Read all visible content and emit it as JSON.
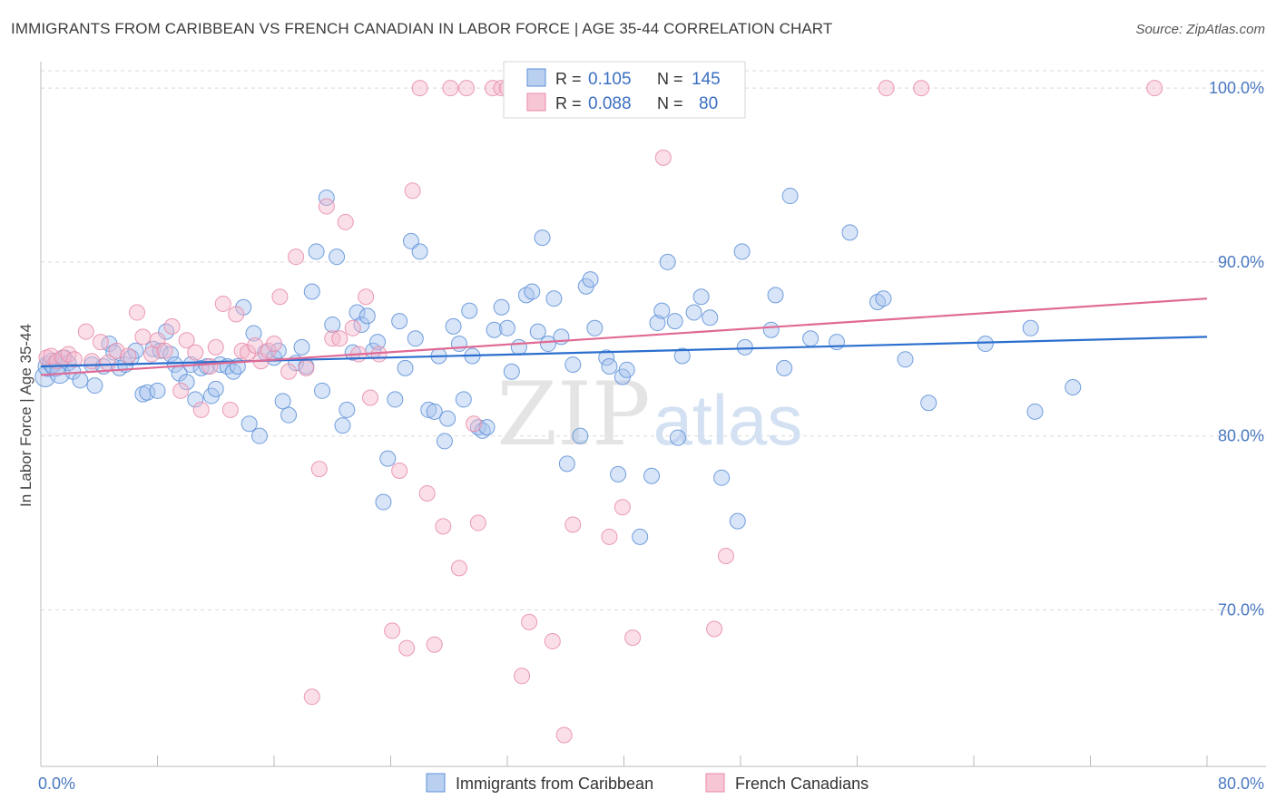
{
  "header": {
    "title": "IMMIGRANTS FROM CARIBBEAN VS FRENCH CANADIAN IN LABOR FORCE | AGE 35-44 CORRELATION CHART",
    "source": "Source: ZipAtlas.com"
  },
  "watermark": {
    "zip": "ZIP",
    "atlas": "atlas"
  },
  "legend_top": {
    "rows": [
      {
        "r_label": "R =",
        "r_value": "0.105",
        "n_label": "N =",
        "n_value": "145"
      },
      {
        "r_label": "R =",
        "r_value": "0.088",
        "n_label": "N =",
        "n_value": "80"
      }
    ]
  },
  "colors": {
    "blue_fill": "#a9c4ee",
    "blue_stroke": "#5b8fd8",
    "blue_line": "#2b6fce",
    "pink_fill": "#f5b8cb",
    "pink_stroke": "#e88aa8",
    "pink_line": "#e06a95",
    "grid": "#d9d9d9",
    "tick_text": "#4a78c2"
  },
  "chart_data": {
    "type": "scatter",
    "title": "IMMIGRANTS FROM CARIBBEAN VS FRENCH CANADIAN IN LABOR FORCE | AGE 35-44 CORRELATION CHART",
    "ylabel": "In Labor Force | Age 35-44",
    "xlabel": "",
    "xlim": [
      0,
      80
    ],
    "ylim": [
      61,
      101
    ],
    "x_ticks": [
      "0.0%",
      "80.0%"
    ],
    "y_ticks": [
      {
        "value": 100,
        "label": "100.0%"
      },
      {
        "value": 90,
        "label": "90.0%"
      },
      {
        "value": 80,
        "label": "80.0%"
      },
      {
        "value": 70,
        "label": "70.0%"
      }
    ],
    "grid": true,
    "legend_position": "bottom",
    "series": [
      {
        "name": "Immigrants from Caribbean",
        "color": "#a9c4ee",
        "trend": {
          "x": [
            0,
            80
          ],
          "y": [
            84.0,
            85.7
          ]
        },
        "points": [
          [
            0.3,
            83.4
          ],
          [
            0.5,
            84.0
          ],
          [
            0.8,
            84.2
          ],
          [
            1.0,
            84.0
          ],
          [
            1.3,
            83.6
          ],
          [
            1.6,
            84.5
          ],
          [
            1.9,
            84.2
          ],
          [
            2.2,
            83.7
          ],
          [
            2.7,
            83.2
          ],
          [
            3.5,
            84.1
          ],
          [
            3.7,
            82.9
          ],
          [
            4.3,
            84.0
          ],
          [
            4.7,
            85.3
          ],
          [
            5.0,
            84.8
          ],
          [
            5.4,
            83.9
          ],
          [
            5.8,
            84.1
          ],
          [
            6.2,
            84.5
          ],
          [
            6.5,
            84.9
          ],
          [
            7.0,
            82.4
          ],
          [
            7.3,
            82.5
          ],
          [
            7.7,
            85.0
          ],
          [
            8.0,
            82.6
          ],
          [
            8.2,
            84.9
          ],
          [
            8.6,
            86.0
          ],
          [
            8.9,
            84.7
          ],
          [
            9.2,
            84.1
          ],
          [
            9.5,
            83.6
          ],
          [
            10.0,
            83.1
          ],
          [
            10.3,
            84.1
          ],
          [
            10.6,
            82.1
          ],
          [
            11.0,
            83.9
          ],
          [
            11.4,
            84.0
          ],
          [
            11.7,
            82.3
          ],
          [
            12.0,
            82.7
          ],
          [
            12.3,
            84.1
          ],
          [
            12.8,
            84.0
          ],
          [
            13.2,
            83.7
          ],
          [
            13.5,
            84.0
          ],
          [
            13.9,
            87.4
          ],
          [
            14.3,
            80.7
          ],
          [
            14.6,
            85.9
          ],
          [
            15.0,
            80.0
          ],
          [
            15.4,
            84.8
          ],
          [
            16.0,
            84.5
          ],
          [
            16.3,
            84.9
          ],
          [
            16.6,
            82.0
          ],
          [
            17.0,
            81.2
          ],
          [
            17.5,
            84.2
          ],
          [
            17.9,
            85.1
          ],
          [
            18.2,
            84.0
          ],
          [
            18.6,
            88.3
          ],
          [
            18.9,
            90.6
          ],
          [
            19.3,
            82.6
          ],
          [
            19.6,
            93.7
          ],
          [
            20.0,
            86.4
          ],
          [
            20.3,
            90.3
          ],
          [
            20.7,
            80.6
          ],
          [
            21.0,
            81.5
          ],
          [
            21.4,
            84.8
          ],
          [
            21.7,
            87.1
          ],
          [
            22.0,
            86.4
          ],
          [
            22.4,
            86.9
          ],
          [
            22.8,
            84.9
          ],
          [
            23.1,
            85.4
          ],
          [
            23.5,
            76.2
          ],
          [
            23.8,
            78.7
          ],
          [
            24.3,
            82.1
          ],
          [
            24.6,
            86.6
          ],
          [
            25.0,
            83.9
          ],
          [
            25.4,
            91.2
          ],
          [
            25.7,
            85.6
          ],
          [
            26.0,
            90.6
          ],
          [
            26.6,
            81.5
          ],
          [
            27.0,
            81.4
          ],
          [
            27.3,
            84.6
          ],
          [
            27.7,
            79.7
          ],
          [
            27.9,
            81.0
          ],
          [
            28.3,
            86.3
          ],
          [
            28.7,
            85.3
          ],
          [
            29.0,
            82.1
          ],
          [
            29.4,
            87.2
          ],
          [
            29.6,
            84.6
          ],
          [
            30.0,
            80.5
          ],
          [
            30.3,
            80.3
          ],
          [
            30.6,
            80.5
          ],
          [
            31.1,
            86.1
          ],
          [
            31.6,
            87.4
          ],
          [
            32.0,
            86.2
          ],
          [
            32.3,
            83.7
          ],
          [
            32.8,
            85.1
          ],
          [
            33.3,
            88.1
          ],
          [
            33.7,
            88.3
          ],
          [
            34.1,
            86.0
          ],
          [
            34.4,
            91.4
          ],
          [
            34.8,
            85.3
          ],
          [
            35.2,
            87.9
          ],
          [
            35.7,
            85.7
          ],
          [
            36.1,
            78.4
          ],
          [
            36.5,
            84.1
          ],
          [
            37.0,
            80.0
          ],
          [
            37.4,
            88.6
          ],
          [
            37.7,
            89.0
          ],
          [
            38.0,
            86.2
          ],
          [
            38.8,
            84.5
          ],
          [
            39.0,
            84.0
          ],
          [
            39.6,
            77.8
          ],
          [
            39.9,
            83.4
          ],
          [
            40.2,
            83.8
          ],
          [
            41.1,
            74.2
          ],
          [
            41.9,
            77.7
          ],
          [
            42.3,
            86.5
          ],
          [
            42.6,
            87.2
          ],
          [
            43.0,
            90.0
          ],
          [
            43.5,
            86.6
          ],
          [
            43.7,
            79.9
          ],
          [
            44.0,
            84.6
          ],
          [
            44.8,
            87.1
          ],
          [
            45.3,
            88.0
          ],
          [
            45.9,
            86.8
          ],
          [
            46.7,
            77.6
          ],
          [
            47.8,
            75.1
          ],
          [
            48.1,
            90.6
          ],
          [
            48.3,
            85.1
          ],
          [
            50.1,
            86.1
          ],
          [
            50.4,
            88.1
          ],
          [
            51.0,
            83.9
          ],
          [
            51.4,
            93.8
          ],
          [
            52.8,
            85.6
          ],
          [
            54.6,
            85.4
          ],
          [
            55.5,
            91.7
          ],
          [
            57.4,
            87.7
          ],
          [
            57.8,
            87.9
          ],
          [
            59.3,
            84.4
          ],
          [
            60.9,
            81.9
          ],
          [
            64.8,
            85.3
          ],
          [
            67.9,
            86.2
          ],
          [
            68.2,
            81.4
          ],
          [
            70.8,
            82.8
          ]
        ]
      },
      {
        "name": "French Canadians",
        "color": "#f5b8cb",
        "trend": {
          "x": [
            0,
            80
          ],
          "y": [
            83.5,
            87.9
          ]
        },
        "points": [
          [
            0.4,
            84.5
          ],
          [
            0.7,
            84.6
          ],
          [
            1.1,
            84.3
          ],
          [
            1.5,
            84.5
          ],
          [
            1.9,
            84.7
          ],
          [
            2.3,
            84.4
          ],
          [
            3.1,
            86.0
          ],
          [
            3.5,
            84.3
          ],
          [
            4.1,
            85.4
          ],
          [
            4.6,
            84.2
          ],
          [
            5.2,
            84.9
          ],
          [
            6.0,
            84.6
          ],
          [
            6.6,
            87.1
          ],
          [
            7.0,
            85.7
          ],
          [
            7.6,
            84.7
          ],
          [
            8.0,
            85.5
          ],
          [
            8.5,
            84.9
          ],
          [
            9.0,
            86.3
          ],
          [
            9.6,
            82.6
          ],
          [
            10.0,
            85.5
          ],
          [
            10.6,
            84.8
          ],
          [
            11.0,
            81.5
          ],
          [
            11.6,
            84.0
          ],
          [
            12.0,
            85.1
          ],
          [
            12.5,
            87.6
          ],
          [
            13.0,
            81.5
          ],
          [
            13.4,
            87.0
          ],
          [
            13.8,
            84.9
          ],
          [
            14.2,
            84.8
          ],
          [
            14.7,
            85.2
          ],
          [
            15.1,
            84.3
          ],
          [
            15.6,
            84.9
          ],
          [
            16.0,
            85.3
          ],
          [
            16.4,
            88.0
          ],
          [
            17.0,
            83.7
          ],
          [
            17.5,
            90.3
          ],
          [
            18.2,
            83.9
          ],
          [
            18.6,
            65.0
          ],
          [
            19.1,
            78.1
          ],
          [
            19.6,
            93.2
          ],
          [
            20.0,
            85.6
          ],
          [
            20.5,
            85.6
          ],
          [
            20.9,
            92.3
          ],
          [
            21.4,
            86.2
          ],
          [
            21.8,
            84.7
          ],
          [
            22.3,
            88.0
          ],
          [
            22.6,
            82.2
          ],
          [
            23.2,
            84.7
          ],
          [
            24.1,
            68.8
          ],
          [
            24.6,
            78.0
          ],
          [
            25.1,
            67.8
          ],
          [
            25.5,
            94.1
          ],
          [
            26.0,
            100.0
          ],
          [
            26.5,
            76.7
          ],
          [
            27.0,
            68.0
          ],
          [
            27.6,
            74.8
          ],
          [
            28.1,
            100.0
          ],
          [
            28.7,
            72.4
          ],
          [
            29.2,
            100.0
          ],
          [
            29.7,
            80.7
          ],
          [
            30.0,
            75.0
          ],
          [
            31.0,
            100.0
          ],
          [
            31.6,
            100.0
          ],
          [
            32.0,
            100.0
          ],
          [
            33.0,
            66.2
          ],
          [
            33.5,
            69.3
          ],
          [
            34.1,
            100.0
          ],
          [
            35.1,
            68.2
          ],
          [
            35.9,
            62.8
          ],
          [
            36.5,
            74.9
          ],
          [
            37.3,
            100.0
          ],
          [
            37.9,
            100.0
          ],
          [
            39.0,
            74.2
          ],
          [
            39.9,
            75.9
          ],
          [
            40.6,
            68.4
          ],
          [
            42.7,
            96.0
          ],
          [
            46.2,
            68.9
          ],
          [
            47.0,
            73.1
          ],
          [
            58.0,
            100.0
          ],
          [
            60.4,
            100.0
          ],
          [
            76.4,
            100.0
          ]
        ]
      }
    ]
  }
}
